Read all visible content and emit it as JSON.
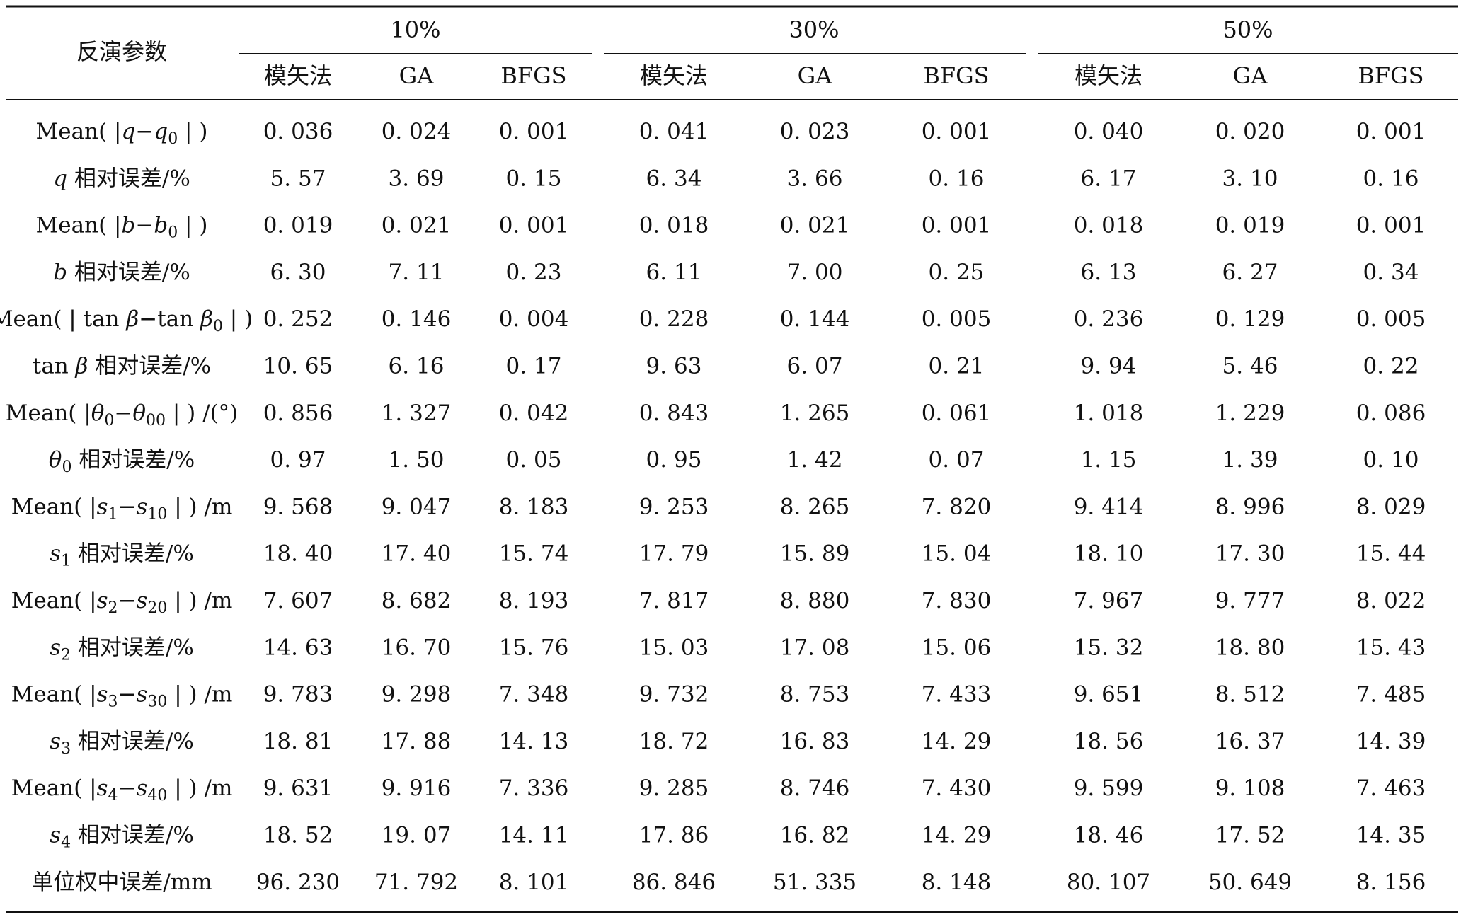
{
  "table": {
    "param_header": "反演参数",
    "groups": [
      "10%",
      "30%",
      "50%"
    ],
    "methods": [
      "模矢法",
      "GA",
      "BFGS"
    ],
    "rows": [
      {
        "label": {
          "pre": "Mean( |",
          "var": "q",
          "mid": "−",
          "var2": "q",
          "sub2": "0",
          "post": " | )"
        },
        "values": [
          "0. 036",
          "0. 024",
          "0. 001",
          "0. 041",
          "0. 023",
          "0. 001",
          "0. 040",
          "0. 020",
          "0. 001"
        ]
      },
      {
        "label": {
          "var": "q",
          "post": " 相对误差/%"
        },
        "values": [
          "5. 57",
          "3. 69",
          "0. 15",
          "6. 34",
          "3. 66",
          "0. 16",
          "6. 17",
          "3. 10",
          "0. 16"
        ]
      },
      {
        "label": {
          "pre": "Mean( |",
          "var": "b",
          "mid": "−",
          "var2": "b",
          "sub2": "0",
          "post": " | )"
        },
        "values": [
          "0. 019",
          "0. 021",
          "0. 001",
          "0. 018",
          "0. 021",
          "0. 001",
          "0. 018",
          "0. 019",
          "0. 001"
        ]
      },
      {
        "label": {
          "var": "b",
          "post": " 相对误差/%"
        },
        "values": [
          "6. 30",
          "7. 11",
          "0. 23",
          "6. 11",
          "7. 00",
          "0. 25",
          "6. 13",
          "6. 27",
          "0. 34"
        ]
      },
      {
        "label": {
          "pre": "Mean( | tan ",
          "var": "β",
          "mid": "−tan ",
          "var2": "β",
          "sub2": "0",
          "post": " | )"
        },
        "values": [
          "0. 252",
          "0. 146",
          "0. 004",
          "0. 228",
          "0. 144",
          "0. 005",
          "0. 236",
          "0. 129",
          "0. 005"
        ]
      },
      {
        "label": {
          "pre": "tan ",
          "var": "β",
          "post": " 相对误差/%"
        },
        "values": [
          "10. 65",
          "6. 16",
          "0. 17",
          "9. 63",
          "6. 07",
          "0. 21",
          "9. 94",
          "5. 46",
          "0. 22"
        ]
      },
      {
        "label": {
          "pre": "Mean( |",
          "var": "θ",
          "sub": "0",
          "mid": "−",
          "var2": "θ",
          "sub2": "00",
          "post": " | ) /(°)"
        },
        "values": [
          "0. 856",
          "1. 327",
          "0. 042",
          "0. 843",
          "1. 265",
          "0. 061",
          "1. 018",
          "1. 229",
          "0. 086"
        ]
      },
      {
        "label": {
          "var": "θ",
          "sub": "0",
          "post": " 相对误差/%"
        },
        "values": [
          "0. 97",
          "1. 50",
          "0. 05",
          "0. 95",
          "1. 42",
          "0. 07",
          "1. 15",
          "1. 39",
          "0. 10"
        ]
      },
      {
        "label": {
          "pre": "Mean( |",
          "var": "s",
          "sub": "1",
          "mid": "−",
          "var2": "s",
          "sub2": "10",
          "post": " | ) /m"
        },
        "values": [
          "9. 568",
          "9. 047",
          "8. 183",
          "9. 253",
          "8. 265",
          "7. 820",
          "9. 414",
          "8. 996",
          "8. 029"
        ]
      },
      {
        "label": {
          "var": "s",
          "sub": "1",
          "post": " 相对误差/%"
        },
        "values": [
          "18. 40",
          "17. 40",
          "15. 74",
          "17. 79",
          "15. 89",
          "15. 04",
          "18. 10",
          "17. 30",
          "15. 44"
        ]
      },
      {
        "label": {
          "pre": "Mean( |",
          "var": "s",
          "sub": "2",
          "mid": "−",
          "var2": "s",
          "sub2": "20",
          "post": " | ) /m"
        },
        "values": [
          "7. 607",
          "8. 682",
          "8. 193",
          "7. 817",
          "8. 880",
          "7. 830",
          "7. 967",
          "9. 777",
          "8. 022"
        ]
      },
      {
        "label": {
          "var": "s",
          "sub": "2",
          "post": " 相对误差/%"
        },
        "values": [
          "14. 63",
          "16. 70",
          "15. 76",
          "15. 03",
          "17. 08",
          "15. 06",
          "15. 32",
          "18. 80",
          "15. 43"
        ]
      },
      {
        "label": {
          "pre": "Mean( |",
          "var": "s",
          "sub": "3",
          "mid": "−",
          "var2": "s",
          "sub2": "30",
          "post": " | ) /m"
        },
        "values": [
          "9. 783",
          "9. 298",
          "7. 348",
          "9. 732",
          "8. 753",
          "7. 433",
          "9. 651",
          "8. 512",
          "7. 485"
        ]
      },
      {
        "label": {
          "var": "s",
          "sub": "3",
          "post": " 相对误差/%"
        },
        "values": [
          "18. 81",
          "17. 88",
          "14. 13",
          "18. 72",
          "16. 83",
          "14. 29",
          "18. 56",
          "16. 37",
          "14. 39"
        ]
      },
      {
        "label": {
          "pre": "Mean( |",
          "var": "s",
          "sub": "4",
          "mid": "−",
          "var2": "s",
          "sub2": "40",
          "post": " | ) /m"
        },
        "values": [
          "9. 631",
          "9. 916",
          "7. 336",
          "9. 285",
          "8. 746",
          "7. 430",
          "9. 599",
          "9. 108",
          "7. 463"
        ]
      },
      {
        "label": {
          "var": "s",
          "sub": "4",
          "post": " 相对误差/%"
        },
        "values": [
          "18. 52",
          "19. 07",
          "14. 11",
          "17. 86",
          "16. 82",
          "14. 29",
          "18. 46",
          "17. 52",
          "14. 35"
        ]
      },
      {
        "label": {
          "post": "单位权中误差/mm"
        },
        "values": [
          "96. 230",
          "71. 792",
          "8. 101",
          "86. 846",
          "51. 335",
          "8. 148",
          "80. 107",
          "50. 649",
          "8. 156"
        ]
      }
    ]
  }
}
